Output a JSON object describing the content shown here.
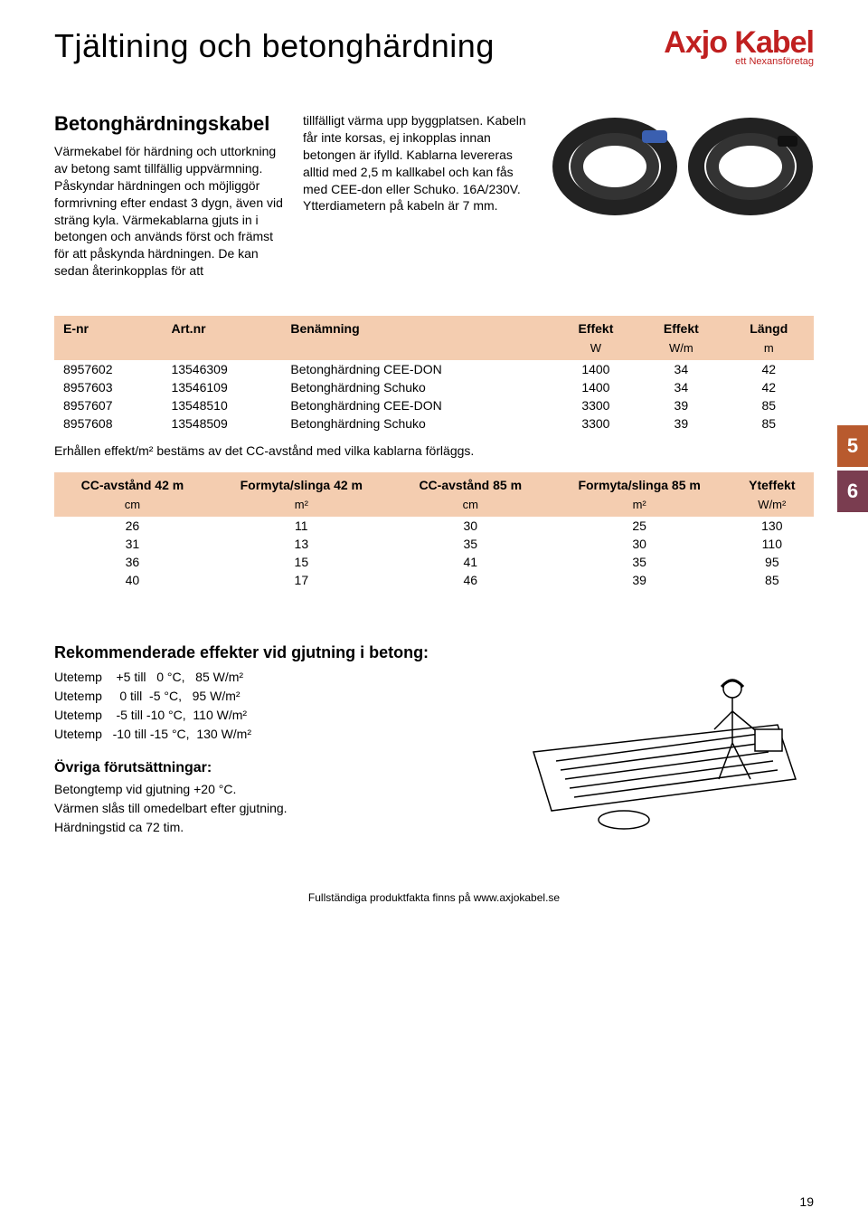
{
  "header": {
    "title": "Tjältining och betonghärdning",
    "logo_text": "Axjo Kabel",
    "logo_sub": "ett Nexansföretag"
  },
  "intro": {
    "heading": "Betonghärdningskabel",
    "col1": "Värmekabel för härdning och uttorkning av betong samt tillfällig uppvärmning. Påskyndar härdningen och möjliggör formrivning efter endast 3 dygn, även vid sträng kyla. Värmekablarna gjuts in i betongen och används först och främst för att påskynda härdningen. De kan sedan återinkopplas för att",
    "col2": "tillfälligt värma upp byggplatsen. Kabeln får inte korsas, ej inkopplas innan betongen är ifylld. Kablarna levereras alltid med 2,5 m kallkabel och kan fås med CEE-don eller Schuko. 16A/230V. Ytterdiametern på kabeln är 7 mm."
  },
  "table1": {
    "headers": [
      "E-nr",
      "Art.nr",
      "Benämning",
      "Effekt",
      "Effekt",
      "Längd"
    ],
    "units": [
      "",
      "",
      "",
      "W",
      "W/m",
      "m"
    ],
    "rows": [
      [
        "8957602",
        "13546309",
        "Betonghärdning CEE-DON",
        "1400",
        "34",
        "42"
      ],
      [
        "8957603",
        "13546109",
        "Betonghärdning Schuko",
        "1400",
        "34",
        "42"
      ],
      [
        "8957607",
        "13548510",
        "Betonghärdning CEE-DON",
        "3300",
        "39",
        "85"
      ],
      [
        "8957608",
        "13548509",
        "Betonghärdning Schuko",
        "3300",
        "39",
        "85"
      ]
    ]
  },
  "side_tabs": {
    "tab5": "5",
    "tab6": "6"
  },
  "note": "Erhållen effekt/m² bestäms av det CC-avstånd med vilka kablarna förläggs.",
  "table2": {
    "headers": [
      "CC-avstånd 42 m",
      "Formyta/slinga 42 m",
      "CC-avstånd 85 m",
      "Formyta/slinga 85 m",
      "Yteffekt"
    ],
    "units": [
      "cm",
      "m²",
      "cm",
      "m²",
      "W/m²"
    ],
    "rows": [
      [
        "26",
        "11",
        "30",
        "25",
        "130"
      ],
      [
        "31",
        "13",
        "35",
        "30",
        "110"
      ],
      [
        "36",
        "15",
        "41",
        "35",
        "95"
      ],
      [
        "40",
        "17",
        "46",
        "39",
        "85"
      ]
    ]
  },
  "rec": {
    "heading": "Rekommenderade effekter vid gjutning i betong:",
    "lines": [
      "Utetemp    +5 till   0 °C,   85 W/m²",
      "Utetemp     0 till  -5 °C,   95 W/m²",
      "Utetemp    -5 till -10 °C,  110 W/m²",
      "Utetemp   -10 till -15 °C,  130 W/m²"
    ],
    "sub_heading": "Övriga förutsättningar:",
    "sub_lines": [
      "Betongtemp vid gjutning +20 °C.",
      "Värmen slås till omedelbart efter gjutning.",
      "Härdningstid ca 72 tim."
    ]
  },
  "footer": {
    "text": "Fullständiga produktfakta finns på www.axjokabel.se",
    "page_num": "19"
  },
  "colors": {
    "header_bg": "#f4cdb0",
    "logo_red": "#c02020",
    "tab5": "#b85a2e",
    "tab6": "#7a3d50"
  }
}
